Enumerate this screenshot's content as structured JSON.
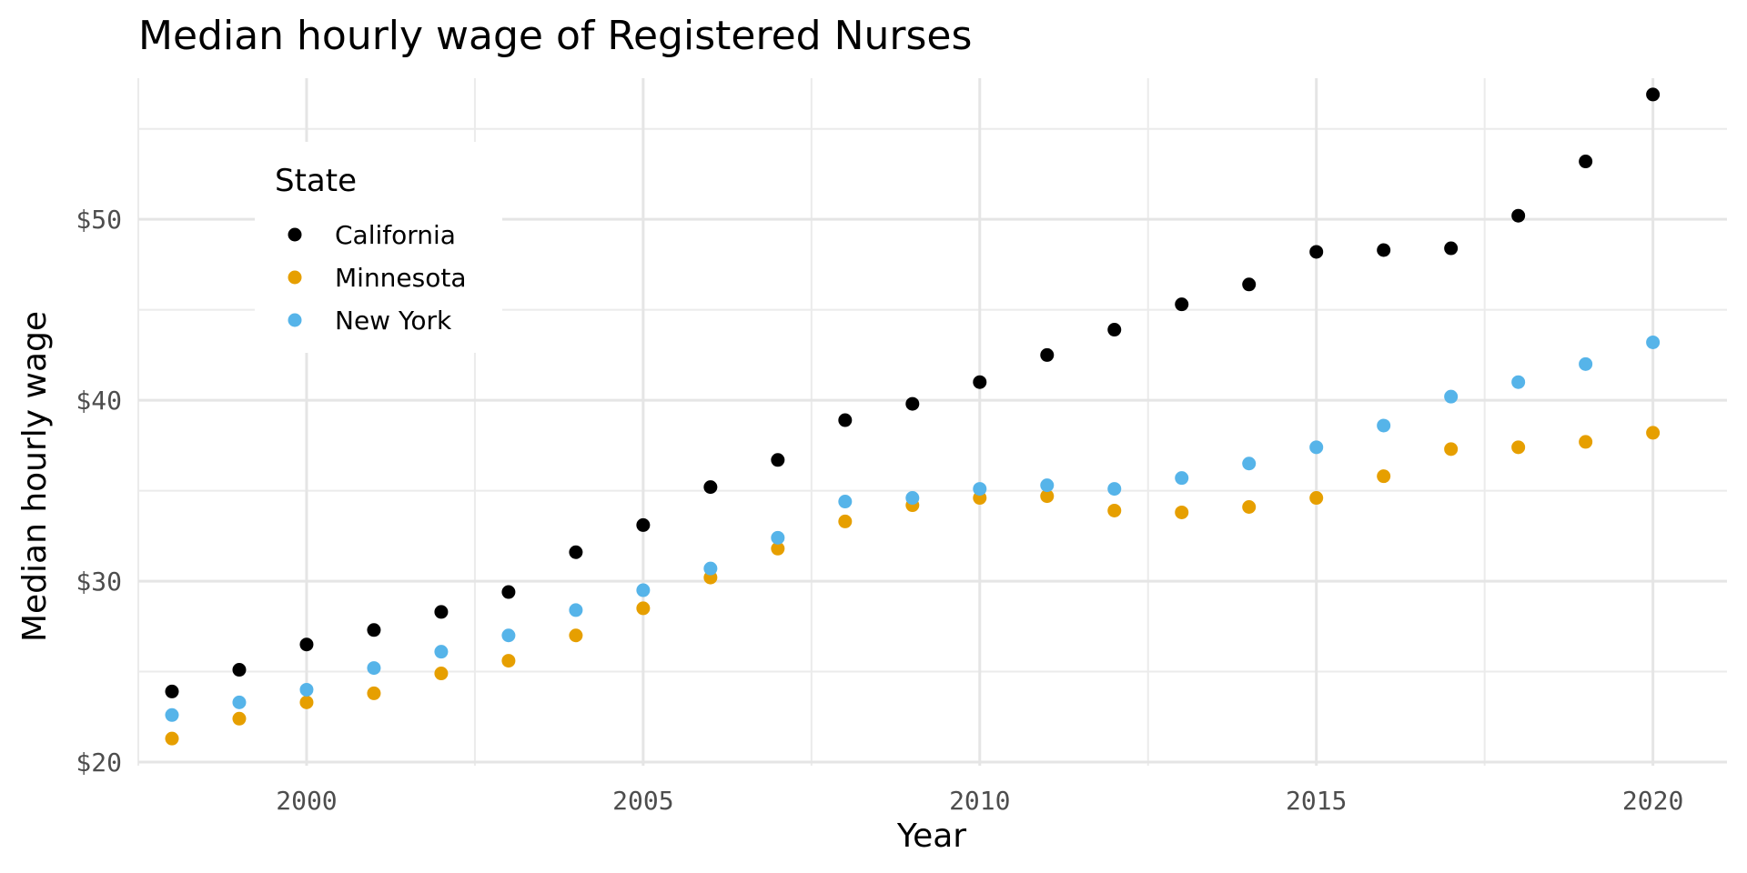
{
  "chart_data": {
    "type": "scatter",
    "title": "Median hourly wage of Registered Nurses",
    "xlabel": "Year",
    "ylabel": "Median hourly wage",
    "xlim": [
      1997.5,
      2021.1
    ],
    "ylim": [
      19.8,
      57.8
    ],
    "x_ticks": [
      2000,
      2005,
      2010,
      2015,
      2020
    ],
    "x_tick_labels": [
      "2000",
      "2005",
      "2010",
      "2015",
      "2020"
    ],
    "y_ticks": [
      20,
      30,
      40,
      50
    ],
    "y_tick_labels": [
      "$20",
      "$30",
      "$40",
      "$50"
    ],
    "x_minor_ticks": [
      1997.5,
      2002.5,
      2007.5,
      2012.5,
      2017.5
    ],
    "y_minor_ticks": [
      25,
      35,
      45,
      55
    ],
    "grid": true,
    "legend": {
      "title": "State",
      "placement": "top-left"
    },
    "x": [
      1998,
      1999,
      2000,
      2001,
      2002,
      2003,
      2004,
      2005,
      2006,
      2007,
      2008,
      2009,
      2010,
      2011,
      2012,
      2013,
      2014,
      2015,
      2016,
      2017,
      2018,
      2019,
      2020
    ],
    "series": [
      {
        "name": "California",
        "color": "#000000",
        "values": [
          23.9,
          25.1,
          26.5,
          27.3,
          28.3,
          29.4,
          31.6,
          33.1,
          35.2,
          36.7,
          38.9,
          39.8,
          41.0,
          42.5,
          43.9,
          45.3,
          46.4,
          48.2,
          48.3,
          48.4,
          50.2,
          53.2,
          56.9
        ]
      },
      {
        "name": "Minnesota",
        "color": "#E69F00",
        "values": [
          21.3,
          22.4,
          23.3,
          23.8,
          24.9,
          25.6,
          27.0,
          28.5,
          30.2,
          31.8,
          33.3,
          34.2,
          34.6,
          34.7,
          33.9,
          33.8,
          34.1,
          34.6,
          35.8,
          37.3,
          37.4,
          37.7,
          38.2
        ]
      },
      {
        "name": "New York",
        "color": "#56B4E9",
        "values": [
          22.6,
          23.3,
          24.0,
          25.2,
          26.1,
          27.0,
          28.4,
          29.5,
          30.7,
          32.4,
          34.4,
          34.6,
          35.1,
          35.3,
          35.1,
          35.7,
          36.5,
          37.4,
          38.6,
          40.2,
          41.0,
          42.0,
          43.2
        ]
      }
    ]
  }
}
